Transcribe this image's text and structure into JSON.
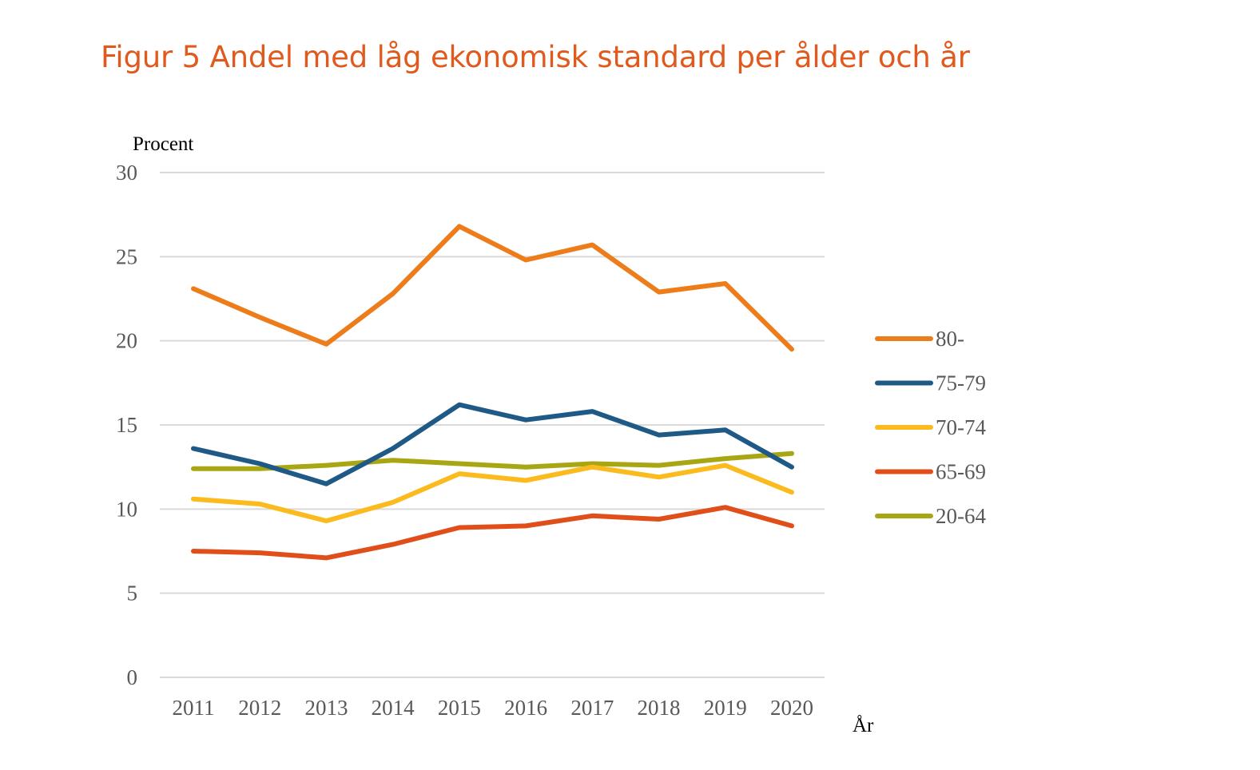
{
  "page": {
    "title": "Figur 5 Andel med låg ekonomisk standard per ålder och år"
  },
  "colors": {
    "title": "#e05a1e",
    "grid": "#d9d9d9",
    "axis_text": "#595959"
  },
  "chart_data": {
    "type": "line",
    "title": "",
    "ylabel": "Procent",
    "xlabel": "År",
    "ylim": [
      0,
      30
    ],
    "yticks": [
      "0",
      "5",
      "10",
      "15",
      "20",
      "25",
      "30"
    ],
    "categories": [
      "2011",
      "2012",
      "2013",
      "2014",
      "2015",
      "2016",
      "2017",
      "2018",
      "2019",
      "2020"
    ],
    "grid": true,
    "legend_position": "right",
    "series": [
      {
        "name": "80-",
        "color": "#ed7d1a",
        "values": [
          23.1,
          21.4,
          19.8,
          22.8,
          26.8,
          24.8,
          25.7,
          22.9,
          23.4,
          19.5
        ]
      },
      {
        "name": "75-79",
        "color": "#1f5a87",
        "values": [
          13.6,
          12.7,
          11.5,
          13.6,
          16.2,
          15.3,
          15.8,
          14.4,
          14.7,
          12.5
        ]
      },
      {
        "name": "70-74",
        "color": "#fbbb1f",
        "values": [
          10.6,
          10.3,
          9.3,
          10.4,
          12.1,
          11.7,
          12.5,
          11.9,
          12.6,
          11.0
        ]
      },
      {
        "name": "65-69",
        "color": "#e04e1a",
        "values": [
          7.5,
          7.4,
          7.1,
          7.9,
          8.9,
          9.0,
          9.6,
          9.4,
          10.1,
          9.0
        ]
      },
      {
        "name": "20-64",
        "color": "#a9a614",
        "values": [
          12.4,
          12.4,
          12.6,
          12.9,
          12.7,
          12.5,
          12.7,
          12.6,
          13.0,
          13.3
        ]
      }
    ]
  }
}
